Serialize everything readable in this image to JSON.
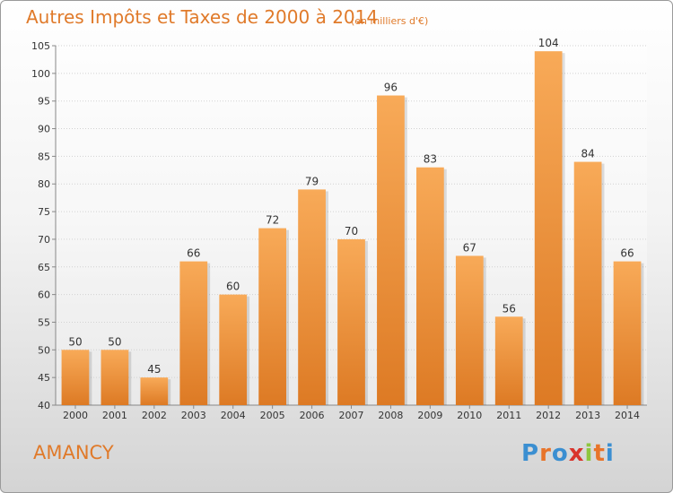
{
  "title": "Autres Impôts et Taxes de 2000 à 2014",
  "subtitle": "(en milliers d'€)",
  "town": "AMANCY",
  "logo": {
    "text": "Proxiti",
    "letters": [
      "P",
      "r",
      "o",
      "x",
      "i",
      "t",
      "i"
    ],
    "colors": [
      "#3b8fd1",
      "#e8742a",
      "#3b8fd1",
      "#d9342c",
      "#8ec63f",
      "#e8742a",
      "#3b8fd1"
    ]
  },
  "colors": {
    "accent": "#e07a2a",
    "bar_top": "#f8aa58",
    "bar_bottom": "#dd7a24"
  },
  "chart_data": {
    "type": "bar",
    "categories": [
      "2000",
      "2001",
      "2002",
      "2003",
      "2004",
      "2005",
      "2006",
      "2007",
      "2008",
      "2009",
      "2010",
      "2011",
      "2012",
      "2013",
      "2014"
    ],
    "values": [
      50,
      50,
      45,
      66,
      60,
      72,
      79,
      70,
      96,
      83,
      67,
      56,
      104,
      84,
      66
    ],
    "ylim": [
      40,
      105
    ],
    "yticks": [
      40,
      45,
      50,
      55,
      60,
      65,
      70,
      75,
      80,
      85,
      90,
      95,
      100,
      105
    ],
    "grid": true,
    "data_labels": true
  }
}
